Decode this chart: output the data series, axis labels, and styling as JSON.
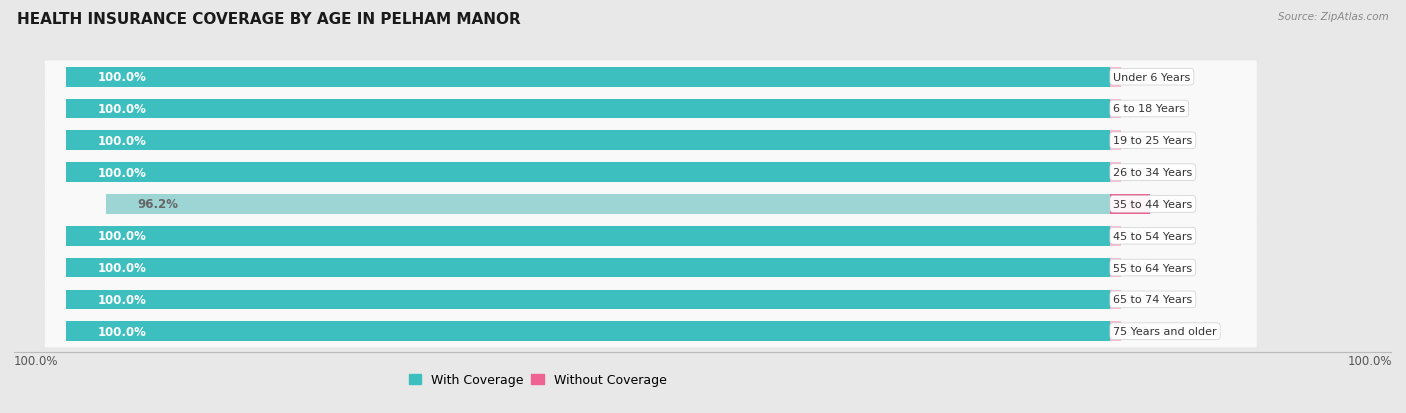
{
  "title": "HEALTH INSURANCE COVERAGE BY AGE IN PELHAM MANOR",
  "source": "Source: ZipAtlas.com",
  "categories": [
    "Under 6 Years",
    "6 to 18 Years",
    "19 to 25 Years",
    "26 to 34 Years",
    "35 to 44 Years",
    "45 to 54 Years",
    "55 to 64 Years",
    "65 to 74 Years",
    "75 Years and older"
  ],
  "with_coverage": [
    100.0,
    100.0,
    100.0,
    100.0,
    96.2,
    100.0,
    100.0,
    100.0,
    100.0
  ],
  "without_coverage": [
    0.0,
    0.0,
    0.0,
    0.0,
    3.8,
    0.0,
    0.0,
    0.0,
    0.0
  ],
  "color_with": "#3DBFBF",
  "color_without_active": "#F06292",
  "color_with_faded": "#9DD5D5",
  "color_without_faded": "#F8BBD0",
  "bg_color": "#e8e8e8",
  "row_bg": "#f9f9f9",
  "row_bg_alt": "#f0f0f0",
  "bar_height": 0.62,
  "title_fontsize": 11,
  "label_fontsize": 8.5,
  "tick_fontsize": 8.5,
  "legend_fontsize": 9,
  "left_pct_color": "white",
  "right_pct_color": "#444444",
  "cat_label_color": "#333333"
}
